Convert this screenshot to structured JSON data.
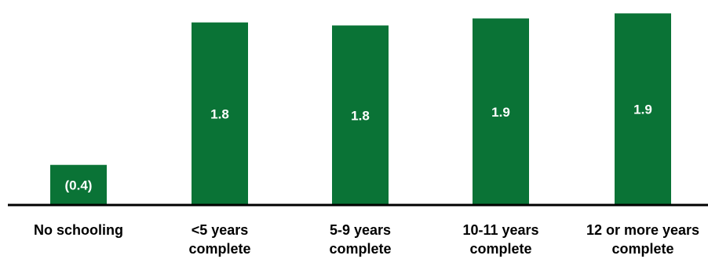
{
  "chart_data": {
    "type": "bar",
    "title": "",
    "xlabel": "",
    "ylabel": "",
    "categories": [
      [
        "No schooling"
      ],
      [
        "<5 years",
        "complete"
      ],
      [
        "5-9 years",
        "complete"
      ],
      [
        "10-11 years",
        "complete"
      ],
      [
        "12 or more years",
        "complete"
      ]
    ],
    "values": [
      0.4,
      1.82,
      1.79,
      1.86,
      1.91
    ],
    "value_labels": [
      "(0.4)",
      "1.8",
      "1.8",
      "1.9",
      "1.9"
    ],
    "ylim": [
      0,
      1.95
    ],
    "grid": false,
    "legend": "none",
    "colors": {
      "bar": "#0a7336",
      "axis": "#000000",
      "value_text": "#ffffff",
      "category_text": "#000000"
    }
  }
}
